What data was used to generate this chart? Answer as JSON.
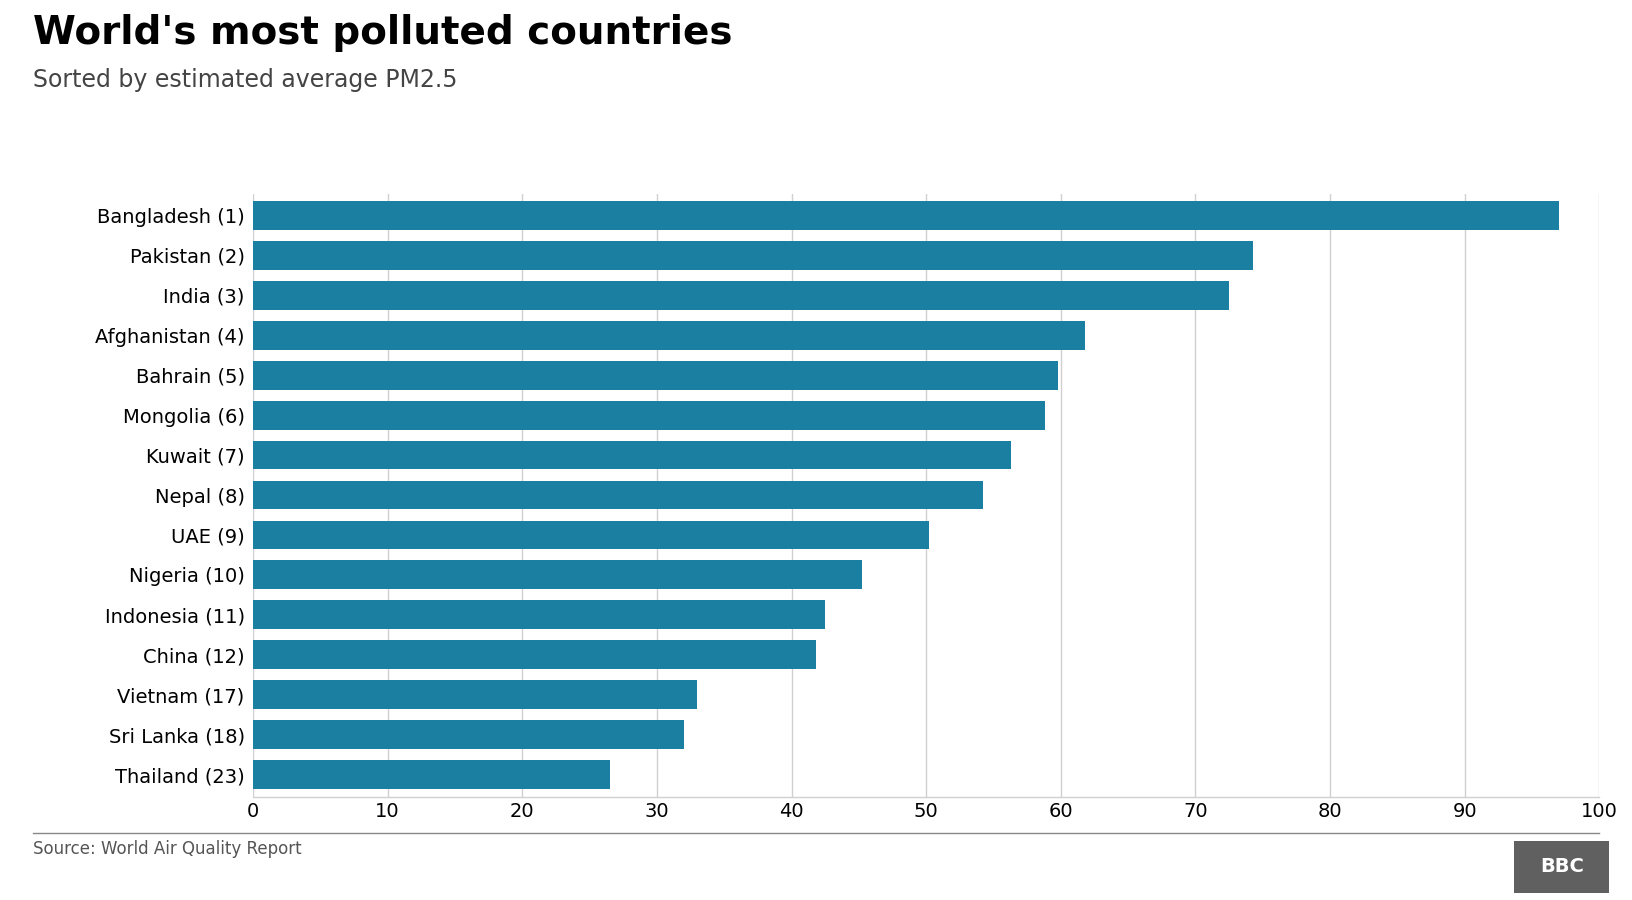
{
  "title": "World's most polluted countries",
  "subtitle": "Sorted by estimated average PM2.5",
  "source": "Source: World Air Quality Report",
  "categories": [
    "Bangladesh (1)",
    "Pakistan (2)",
    "India (3)",
    "Afghanistan (4)",
    "Bahrain (5)",
    "Mongolia (6)",
    "Kuwait (7)",
    "Nepal (8)",
    "UAE (9)",
    "Nigeria (10)",
    "Indonesia (11)",
    "China (12)",
    "Vietnam (17)",
    "Sri Lanka (18)",
    "Thailand (23)"
  ],
  "values": [
    97,
    74.3,
    72.5,
    61.8,
    59.8,
    58.8,
    56.3,
    54.2,
    50.2,
    45.2,
    42.5,
    41.8,
    33.0,
    32.0,
    26.5
  ],
  "bar_color": "#1a7fa0",
  "background_color": "#ffffff",
  "xlim": [
    0,
    100
  ],
  "xticks": [
    0,
    10,
    20,
    30,
    40,
    50,
    60,
    70,
    80,
    90,
    100
  ],
  "title_fontsize": 28,
  "subtitle_fontsize": 17,
  "tick_fontsize": 14,
  "source_fontsize": 12,
  "grid_color": "#d0d0d0",
  "bbc_box_color": "#606060",
  "bbc_text_color": "#ffffff"
}
